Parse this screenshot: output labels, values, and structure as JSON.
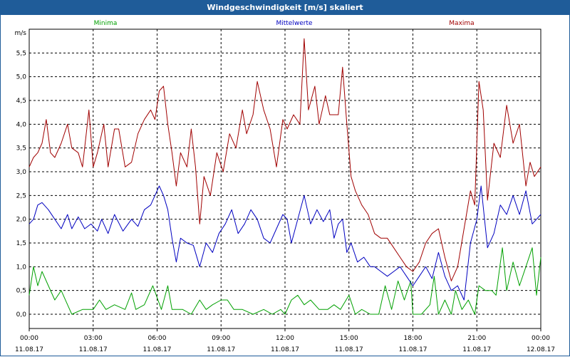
{
  "window": {
    "title": "Windgeschwindigkeit [m/s] skaliert"
  },
  "chart_data": {
    "type": "line",
    "title": "Windgeschwindigkeit [m/s] skaliert",
    "ylabel": "m/s",
    "xlabel": "",
    "ylim": [
      -0.3,
      6.0
    ],
    "y_ticks": [
      "0,0",
      "0,5",
      "1,0",
      "1,5",
      "2,0",
      "2,5",
      "3,0",
      "3,5",
      "4,0",
      "4,5",
      "5,0",
      "5,5"
    ],
    "x_ticks": [
      {
        "time": "00:00",
        "date": "11.08.17"
      },
      {
        "time": "03:00",
        "date": "11.08.17"
      },
      {
        "time": "06:00",
        "date": "11.08.17"
      },
      {
        "time": "09:00",
        "date": "11.08.17"
      },
      {
        "time": "12:00",
        "date": "11.08.17"
      },
      {
        "time": "15:00",
        "date": "11.08.17"
      },
      {
        "time": "18:00",
        "date": "11.08.17"
      },
      {
        "time": "21:00",
        "date": "11.08.17"
      },
      {
        "time": "00:00",
        "date": "12.08.17"
      }
    ],
    "grid": true,
    "series": [
      {
        "name": "Minima",
        "color": "#00a000",
        "points": [
          [
            0,
            0.4
          ],
          [
            0.2,
            1.0
          ],
          [
            0.4,
            0.6
          ],
          [
            0.6,
            0.9
          ],
          [
            0.9,
            0.6
          ],
          [
            1.2,
            0.3
          ],
          [
            1.5,
            0.5
          ],
          [
            1.8,
            0.2
          ],
          [
            2.0,
            0.0
          ],
          [
            2.5,
            0.1
          ],
          [
            3.0,
            0.1
          ],
          [
            3.3,
            0.3
          ],
          [
            3.6,
            0.1
          ],
          [
            4.0,
            0.2
          ],
          [
            4.5,
            0.1
          ],
          [
            4.8,
            0.45
          ],
          [
            5.0,
            0.1
          ],
          [
            5.4,
            0.2
          ],
          [
            5.8,
            0.6
          ],
          [
            6.2,
            0.1
          ],
          [
            6.5,
            0.6
          ],
          [
            6.7,
            0.1
          ],
          [
            7.2,
            0.1
          ],
          [
            7.6,
            0.0
          ],
          [
            8.0,
            0.3
          ],
          [
            8.3,
            0.1
          ],
          [
            8.6,
            0.2
          ],
          [
            9.0,
            0.3
          ],
          [
            9.3,
            0.3
          ],
          [
            9.6,
            0.1
          ],
          [
            10.0,
            0.1
          ],
          [
            10.5,
            0.0
          ],
          [
            11.0,
            0.1
          ],
          [
            11.4,
            0.0
          ],
          [
            11.8,
            0.1
          ],
          [
            12.0,
            0.0
          ],
          [
            12.3,
            0.3
          ],
          [
            12.6,
            0.4
          ],
          [
            12.9,
            0.2
          ],
          [
            13.2,
            0.3
          ],
          [
            13.6,
            0.1
          ],
          [
            14.0,
            0.1
          ],
          [
            14.3,
            0.2
          ],
          [
            14.6,
            0.1
          ],
          [
            15.0,
            0.4
          ],
          [
            15.3,
            0.0
          ],
          [
            15.6,
            0.1
          ],
          [
            16.0,
            0.0
          ],
          [
            16.4,
            0.0
          ],
          [
            16.7,
            0.6
          ],
          [
            17.0,
            0.1
          ],
          [
            17.3,
            0.7
          ],
          [
            17.6,
            0.3
          ],
          [
            17.9,
            0.7
          ],
          [
            18.0,
            0.0
          ],
          [
            18.4,
            0.0
          ],
          [
            18.8,
            0.2
          ],
          [
            19.0,
            0.8
          ],
          [
            19.2,
            0.0
          ],
          [
            19.5,
            0.3
          ],
          [
            19.8,
            0.0
          ],
          [
            20.0,
            0.5
          ],
          [
            20.3,
            0.1
          ],
          [
            20.6,
            0.3
          ],
          [
            20.9,
            0.0
          ],
          [
            21.1,
            0.6
          ],
          [
            21.4,
            0.5
          ],
          [
            21.7,
            0.5
          ],
          [
            21.9,
            0.4
          ],
          [
            22.2,
            1.4
          ],
          [
            22.4,
            0.5
          ],
          [
            22.7,
            1.1
          ],
          [
            23.0,
            0.6
          ],
          [
            23.3,
            1.0
          ],
          [
            23.6,
            1.4
          ],
          [
            23.8,
            0.4
          ],
          [
            24.0,
            1.2
          ]
        ]
      },
      {
        "name": "Mittelwerte",
        "color": "#0000c0",
        "points": [
          [
            0,
            1.9
          ],
          [
            0.2,
            2.0
          ],
          [
            0.4,
            2.3
          ],
          [
            0.6,
            2.35
          ],
          [
            0.9,
            2.2
          ],
          [
            1.2,
            2.0
          ],
          [
            1.5,
            1.8
          ],
          [
            1.8,
            2.1
          ],
          [
            2.0,
            1.8
          ],
          [
            2.3,
            2.05
          ],
          [
            2.6,
            1.8
          ],
          [
            2.9,
            1.9
          ],
          [
            3.2,
            1.75
          ],
          [
            3.4,
            2.0
          ],
          [
            3.7,
            1.7
          ],
          [
            4.0,
            2.1
          ],
          [
            4.4,
            1.75
          ],
          [
            4.8,
            2.0
          ],
          [
            5.1,
            1.85
          ],
          [
            5.4,
            2.2
          ],
          [
            5.7,
            2.3
          ],
          [
            5.9,
            2.5
          ],
          [
            6.1,
            2.7
          ],
          [
            6.3,
            2.5
          ],
          [
            6.5,
            2.2
          ],
          [
            6.7,
            1.6
          ],
          [
            6.9,
            1.1
          ],
          [
            7.1,
            1.6
          ],
          [
            7.4,
            1.5
          ],
          [
            7.7,
            1.45
          ],
          [
            8.0,
            1.0
          ],
          [
            8.3,
            1.5
          ],
          [
            8.6,
            1.3
          ],
          [
            8.9,
            1.7
          ],
          [
            9.2,
            1.9
          ],
          [
            9.5,
            2.2
          ],
          [
            9.8,
            1.7
          ],
          [
            10.1,
            1.9
          ],
          [
            10.4,
            2.2
          ],
          [
            10.7,
            2.0
          ],
          [
            11.0,
            1.6
          ],
          [
            11.3,
            1.5
          ],
          [
            11.6,
            1.8
          ],
          [
            11.9,
            2.1
          ],
          [
            12.1,
            2.0
          ],
          [
            12.3,
            1.5
          ],
          [
            12.6,
            2.0
          ],
          [
            12.9,
            2.5
          ],
          [
            13.2,
            1.9
          ],
          [
            13.5,
            2.2
          ],
          [
            13.8,
            1.95
          ],
          [
            14.1,
            2.2
          ],
          [
            14.3,
            1.6
          ],
          [
            14.5,
            1.9
          ],
          [
            14.7,
            2.0
          ],
          [
            14.9,
            1.3
          ],
          [
            15.1,
            1.5
          ],
          [
            15.4,
            1.1
          ],
          [
            15.7,
            1.2
          ],
          [
            16.0,
            1.0
          ],
          [
            16.2,
            1.0
          ],
          [
            16.5,
            0.9
          ],
          [
            16.8,
            0.8
          ],
          [
            17.1,
            0.9
          ],
          [
            17.4,
            1.0
          ],
          [
            17.7,
            0.8
          ],
          [
            18.0,
            0.6
          ],
          [
            18.3,
            0.8
          ],
          [
            18.6,
            1.0
          ],
          [
            18.9,
            0.75
          ],
          [
            19.2,
            1.3
          ],
          [
            19.5,
            0.8
          ],
          [
            19.8,
            0.5
          ],
          [
            20.1,
            0.6
          ],
          [
            20.4,
            0.3
          ],
          [
            20.7,
            1.5
          ],
          [
            21.0,
            2.0
          ],
          [
            21.2,
            2.7
          ],
          [
            21.5,
            1.4
          ],
          [
            21.8,
            1.7
          ],
          [
            22.1,
            2.3
          ],
          [
            22.4,
            2.1
          ],
          [
            22.7,
            2.5
          ],
          [
            23.0,
            2.1
          ],
          [
            23.3,
            2.6
          ],
          [
            23.6,
            1.9
          ],
          [
            23.8,
            2.0
          ],
          [
            24.0,
            2.1
          ]
        ]
      },
      {
        "name": "Maxima",
        "color": "#a00000",
        "points": [
          [
            0,
            3.1
          ],
          [
            0.2,
            3.3
          ],
          [
            0.4,
            3.4
          ],
          [
            0.6,
            3.6
          ],
          [
            0.8,
            4.1
          ],
          [
            1.0,
            3.4
          ],
          [
            1.2,
            3.3
          ],
          [
            1.5,
            3.6
          ],
          [
            1.8,
            4.0
          ],
          [
            2.0,
            3.5
          ],
          [
            2.3,
            3.4
          ],
          [
            2.5,
            3.1
          ],
          [
            2.8,
            4.3
          ],
          [
            3.0,
            3.1
          ],
          [
            3.2,
            3.4
          ],
          [
            3.5,
            4.0
          ],
          [
            3.7,
            3.1
          ],
          [
            4.0,
            3.9
          ],
          [
            4.2,
            3.9
          ],
          [
            4.5,
            3.1
          ],
          [
            4.8,
            3.2
          ],
          [
            5.1,
            3.8
          ],
          [
            5.4,
            4.1
          ],
          [
            5.7,
            4.3
          ],
          [
            5.9,
            4.1
          ],
          [
            6.1,
            4.7
          ],
          [
            6.3,
            4.8
          ],
          [
            6.5,
            4.0
          ],
          [
            6.7,
            3.4
          ],
          [
            6.9,
            2.7
          ],
          [
            7.1,
            3.4
          ],
          [
            7.4,
            3.1
          ],
          [
            7.6,
            3.9
          ],
          [
            7.8,
            3.1
          ],
          [
            8.0,
            1.9
          ],
          [
            8.2,
            2.9
          ],
          [
            8.5,
            2.5
          ],
          [
            8.8,
            3.4
          ],
          [
            9.1,
            3.0
          ],
          [
            9.4,
            3.8
          ],
          [
            9.7,
            3.5
          ],
          [
            10.0,
            4.3
          ],
          [
            10.2,
            3.8
          ],
          [
            10.5,
            4.2
          ],
          [
            10.7,
            4.9
          ],
          [
            11.0,
            4.3
          ],
          [
            11.3,
            3.9
          ],
          [
            11.6,
            3.1
          ],
          [
            11.9,
            4.1
          ],
          [
            12.1,
            3.9
          ],
          [
            12.4,
            4.2
          ],
          [
            12.7,
            4.0
          ],
          [
            12.9,
            5.8
          ],
          [
            13.1,
            4.3
          ],
          [
            13.4,
            4.8
          ],
          [
            13.6,
            4.0
          ],
          [
            13.9,
            4.6
          ],
          [
            14.1,
            4.2
          ],
          [
            14.5,
            4.2
          ],
          [
            14.7,
            5.2
          ],
          [
            14.9,
            4.0
          ],
          [
            15.1,
            2.9
          ],
          [
            15.3,
            2.6
          ],
          [
            15.6,
            2.3
          ],
          [
            15.9,
            2.1
          ],
          [
            16.2,
            1.7
          ],
          [
            16.5,
            1.6
          ],
          [
            16.8,
            1.6
          ],
          [
            17.1,
            1.4
          ],
          [
            17.4,
            1.2
          ],
          [
            17.7,
            1.0
          ],
          [
            18.0,
            0.9
          ],
          [
            18.3,
            1.1
          ],
          [
            18.6,
            1.5
          ],
          [
            18.9,
            1.7
          ],
          [
            19.2,
            1.8
          ],
          [
            19.5,
            1.2
          ],
          [
            19.8,
            0.7
          ],
          [
            20.1,
            1.0
          ],
          [
            20.4,
            1.8
          ],
          [
            20.7,
            2.6
          ],
          [
            20.9,
            2.3
          ],
          [
            21.1,
            4.9
          ],
          [
            21.3,
            4.3
          ],
          [
            21.5,
            2.4
          ],
          [
            21.8,
            3.6
          ],
          [
            22.1,
            3.3
          ],
          [
            22.4,
            4.4
          ],
          [
            22.7,
            3.6
          ],
          [
            23.0,
            4.0
          ],
          [
            23.3,
            2.7
          ],
          [
            23.5,
            3.2
          ],
          [
            23.7,
            2.9
          ],
          [
            24.0,
            3.1
          ]
        ]
      }
    ]
  }
}
